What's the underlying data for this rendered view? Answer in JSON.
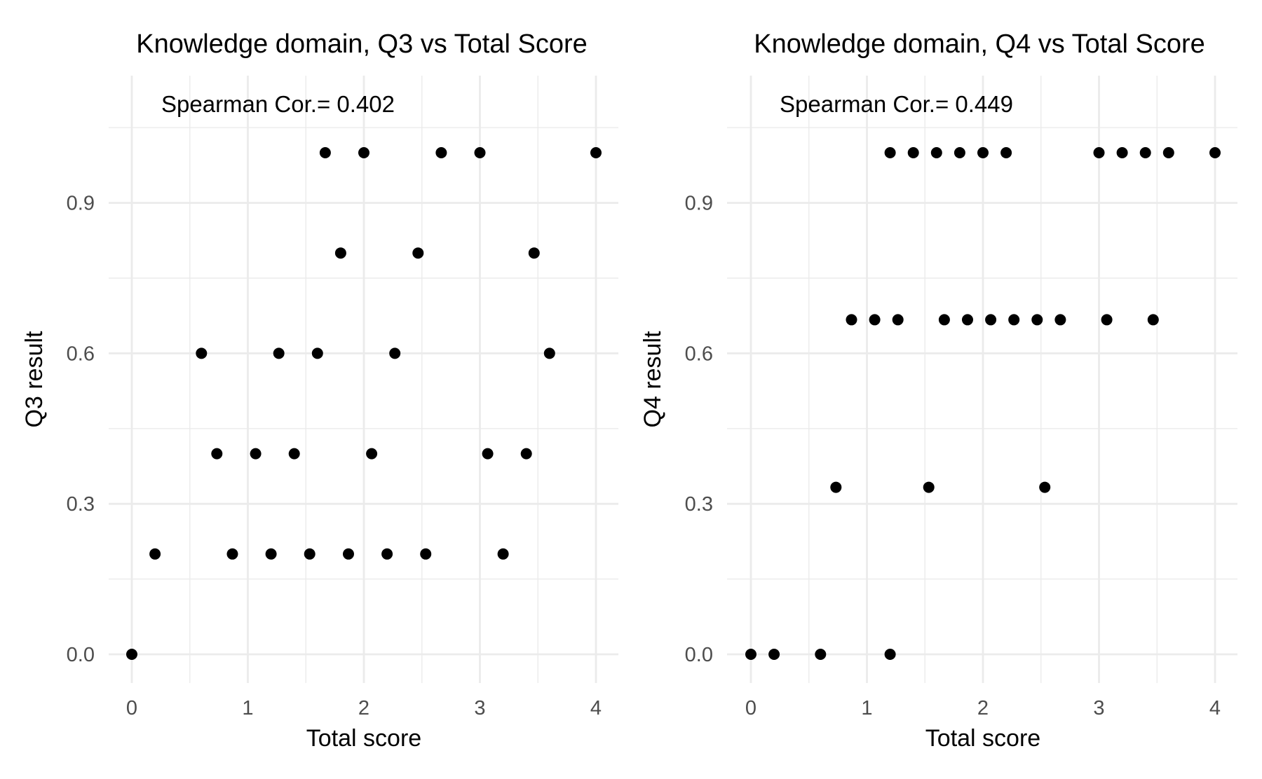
{
  "chart_data": [
    {
      "type": "scatter",
      "title": "Knowledge domain, Q3 vs Total Score",
      "xlabel": "Total score",
      "ylabel": "Q3 result",
      "annotation": "Spearman Cor.= 0.402",
      "xlim": [
        0,
        4
      ],
      "ylim": [
        0,
        1
      ],
      "xticks": [
        "0",
        "1",
        "2",
        "3",
        "4"
      ],
      "yticks": [
        "0.0",
        "0.3",
        "0.6",
        "0.9"
      ],
      "grid": true,
      "point_color": "#000000",
      "points": [
        {
          "x": 0,
          "y": 0.0
        },
        {
          "x": 0.2,
          "y": 0.2
        },
        {
          "x": 0.6,
          "y": 0.6
        },
        {
          "x": 0.733,
          "y": 0.4
        },
        {
          "x": 0.867,
          "y": 0.2
        },
        {
          "x": 1.067,
          "y": 0.4
        },
        {
          "x": 1.2,
          "y": 0.2
        },
        {
          "x": 1.267,
          "y": 0.6
        },
        {
          "x": 1.4,
          "y": 0.4
        },
        {
          "x": 1.533,
          "y": 0.2
        },
        {
          "x": 1.6,
          "y": 0.6
        },
        {
          "x": 1.667,
          "y": 1.0
        },
        {
          "x": 1.8,
          "y": 0.8
        },
        {
          "x": 1.867,
          "y": 0.2
        },
        {
          "x": 2.0,
          "y": 1.0
        },
        {
          "x": 2.067,
          "y": 0.4
        },
        {
          "x": 2.2,
          "y": 0.2
        },
        {
          "x": 2.267,
          "y": 0.6
        },
        {
          "x": 2.467,
          "y": 0.8
        },
        {
          "x": 2.533,
          "y": 0.2
        },
        {
          "x": 2.667,
          "y": 1.0
        },
        {
          "x": 3.0,
          "y": 1.0
        },
        {
          "x": 3.067,
          "y": 0.4
        },
        {
          "x": 3.2,
          "y": 0.2
        },
        {
          "x": 3.4,
          "y": 0.4
        },
        {
          "x": 3.467,
          "y": 0.8
        },
        {
          "x": 3.6,
          "y": 0.6
        },
        {
          "x": 4.0,
          "y": 1.0
        }
      ]
    },
    {
      "type": "scatter",
      "title": "Knowledge domain, Q4 vs Total Score",
      "xlabel": "Total score",
      "ylabel": "Q4 result",
      "annotation": "Spearman Cor.= 0.449",
      "xlim": [
        0,
        4
      ],
      "ylim": [
        0,
        1
      ],
      "xticks": [
        "0",
        "1",
        "2",
        "3",
        "4"
      ],
      "yticks": [
        "0.0",
        "0.3",
        "0.6",
        "0.9"
      ],
      "grid": true,
      "point_color": "#000000",
      "points": [
        {
          "x": 0,
          "y": 0.0
        },
        {
          "x": 0.2,
          "y": 0.0
        },
        {
          "x": 0.6,
          "y": 0.0
        },
        {
          "x": 1.2,
          "y": 0.0
        },
        {
          "x": 0.733,
          "y": 0.333
        },
        {
          "x": 1.533,
          "y": 0.333
        },
        {
          "x": 2.533,
          "y": 0.333
        },
        {
          "x": 0.867,
          "y": 0.667
        },
        {
          "x": 1.067,
          "y": 0.667
        },
        {
          "x": 1.267,
          "y": 0.667
        },
        {
          "x": 1.667,
          "y": 0.667
        },
        {
          "x": 1.867,
          "y": 0.667
        },
        {
          "x": 2.067,
          "y": 0.667
        },
        {
          "x": 2.267,
          "y": 0.667
        },
        {
          "x": 2.467,
          "y": 0.667
        },
        {
          "x": 2.667,
          "y": 0.667
        },
        {
          "x": 3.067,
          "y": 0.667
        },
        {
          "x": 3.467,
          "y": 0.667
        },
        {
          "x": 1.2,
          "y": 1.0
        },
        {
          "x": 1.4,
          "y": 1.0
        },
        {
          "x": 1.6,
          "y": 1.0
        },
        {
          "x": 1.8,
          "y": 1.0
        },
        {
          "x": 2.0,
          "y": 1.0
        },
        {
          "x": 2.2,
          "y": 1.0
        },
        {
          "x": 3.0,
          "y": 1.0
        },
        {
          "x": 3.2,
          "y": 1.0
        },
        {
          "x": 3.4,
          "y": 1.0
        },
        {
          "x": 3.6,
          "y": 1.0
        },
        {
          "x": 4.0,
          "y": 1.0
        }
      ]
    }
  ]
}
